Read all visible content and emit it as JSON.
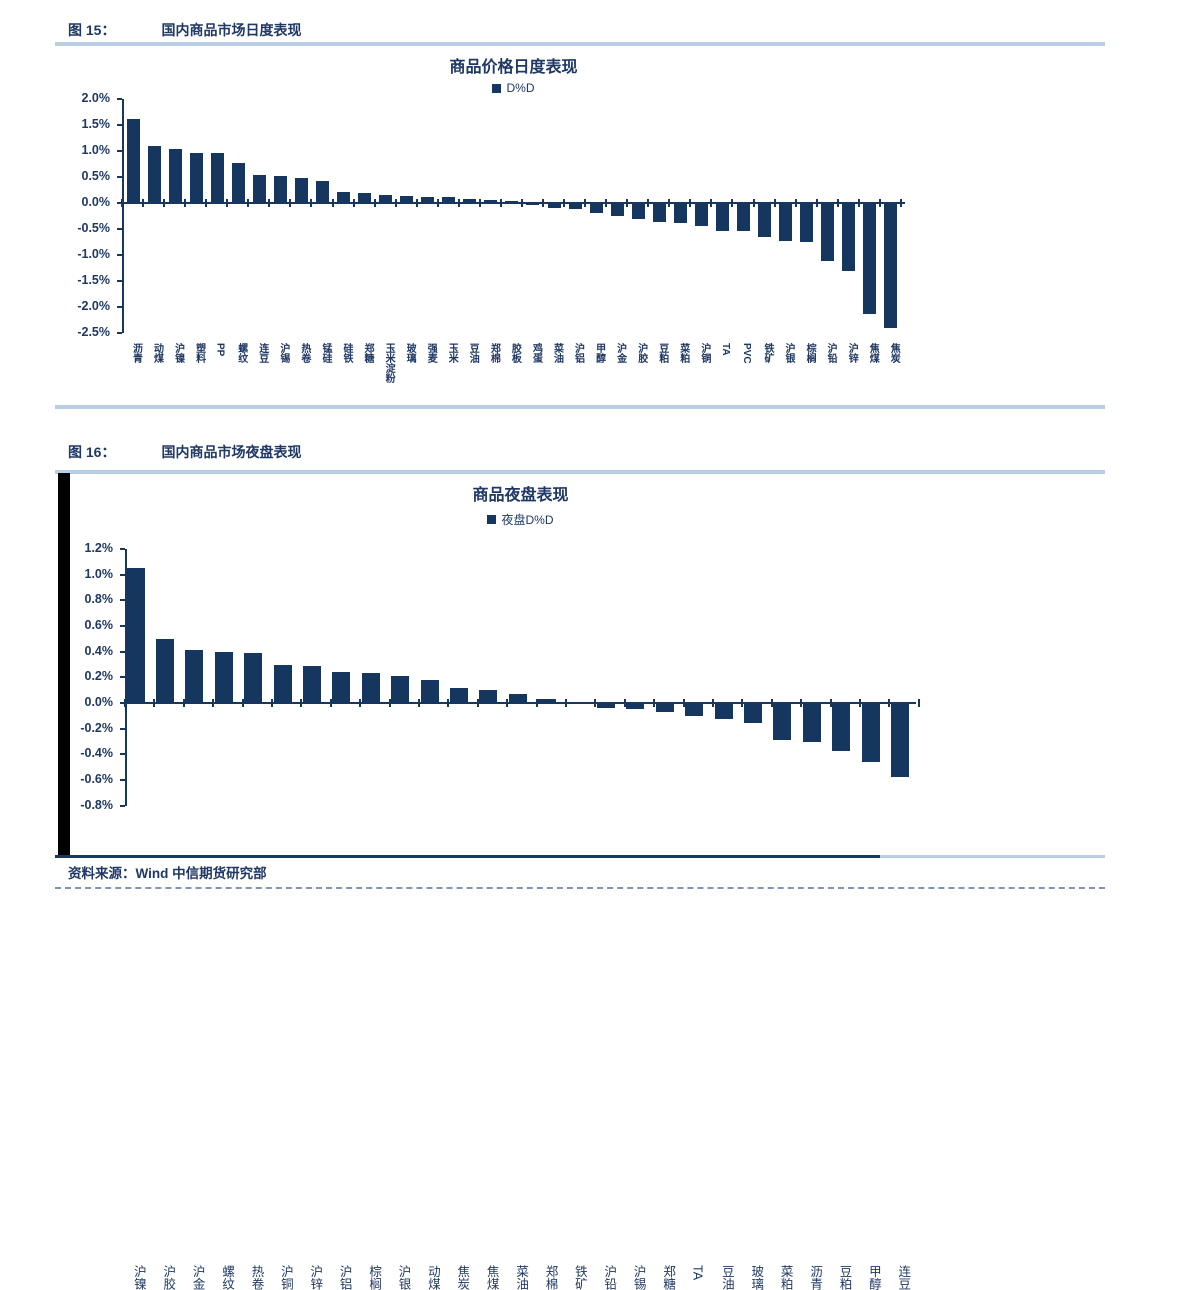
{
  "figures": [
    {
      "label": "图 15：",
      "title": "国内商品市场日度表现"
    },
    {
      "label": "图 16：",
      "title": "国内商品市场夜盘表现"
    }
  ],
  "footer": {
    "source_note": "资料来源：Wind 中信期货研究部"
  },
  "colors": {
    "bar": "#14365f",
    "text": "#1f3864",
    "separator": "#b9cde5",
    "axis": "#17375e",
    "dashed_rule": "#7d95bd"
  },
  "chart_data": [
    {
      "type": "bar",
      "title": "商品价格日度表现",
      "legend": [
        "D%D"
      ],
      "legend_position": "top",
      "ylabel": "",
      "xlabel": "",
      "unit": "%",
      "ylim": [
        -2.5,
        2.0
      ],
      "ytick_step": 0.5,
      "grid": false,
      "categories": [
        "沥青",
        "动煤",
        "沪镍",
        "塑料",
        "PP",
        "螺纹",
        "连豆",
        "沪锡",
        "热卷",
        "锰硅",
        "硅铁",
        "郑糖",
        "玉米淀粉",
        "玻璃",
        "强麦",
        "玉米",
        "豆油",
        "郑棉",
        "胶板",
        "鸡蛋",
        "菜油",
        "沪铝",
        "甲醇",
        "沪金",
        "沪胶",
        "豆粕",
        "菜粕",
        "沪铜",
        "TA",
        "PVC",
        "铁矿",
        "沪银",
        "棕榈",
        "沪铅",
        "沪锌",
        "焦煤",
        "焦炭"
      ],
      "values": [
        1.62,
        1.1,
        1.04,
        0.97,
        0.96,
        0.77,
        0.53,
        0.52,
        0.49,
        0.42,
        0.21,
        0.2,
        0.16,
        0.14,
        0.12,
        0.11,
        0.08,
        0.06,
        0.03,
        -0.02,
        -0.08,
        -0.1,
        -0.18,
        -0.23,
        -0.29,
        -0.34,
        -0.37,
        -0.43,
        -0.51,
        -0.52,
        -0.64,
        -0.72,
        -0.74,
        -1.1,
        -1.28,
        -2.12,
        -2.38
      ]
    },
    {
      "type": "bar",
      "title": "商品夜盘表现",
      "legend": [
        "夜盘D%D"
      ],
      "legend_position": "top",
      "ylabel": "",
      "xlabel": "",
      "unit": "%",
      "ylim": [
        -0.8,
        1.2
      ],
      "ytick_step": 0.2,
      "grid": false,
      "categories": [
        "沪镍",
        "沪胶",
        "沪金",
        "螺纹",
        "热卷",
        "沪铜",
        "沪锌",
        "沪铝",
        "棕榈",
        "沪银",
        "动煤",
        "焦炭",
        "焦煤",
        "菜油",
        "郑棉",
        "铁矿",
        "沪铅",
        "沪锡",
        "郑糖",
        "TA",
        "豆油",
        "玻璃",
        "菜粕",
        "沥青",
        "豆粕",
        "甲醇",
        "连豆"
      ],
      "values": [
        1.05,
        0.5,
        0.41,
        0.4,
        0.39,
        0.3,
        0.29,
        0.24,
        0.23,
        0.21,
        0.18,
        0.12,
        0.1,
        0.07,
        0.03,
        0.01,
        -0.03,
        -0.04,
        -0.06,
        -0.09,
        -0.12,
        -0.15,
        -0.28,
        -0.3,
        -0.37,
        -0.45,
        -0.57
      ]
    }
  ]
}
